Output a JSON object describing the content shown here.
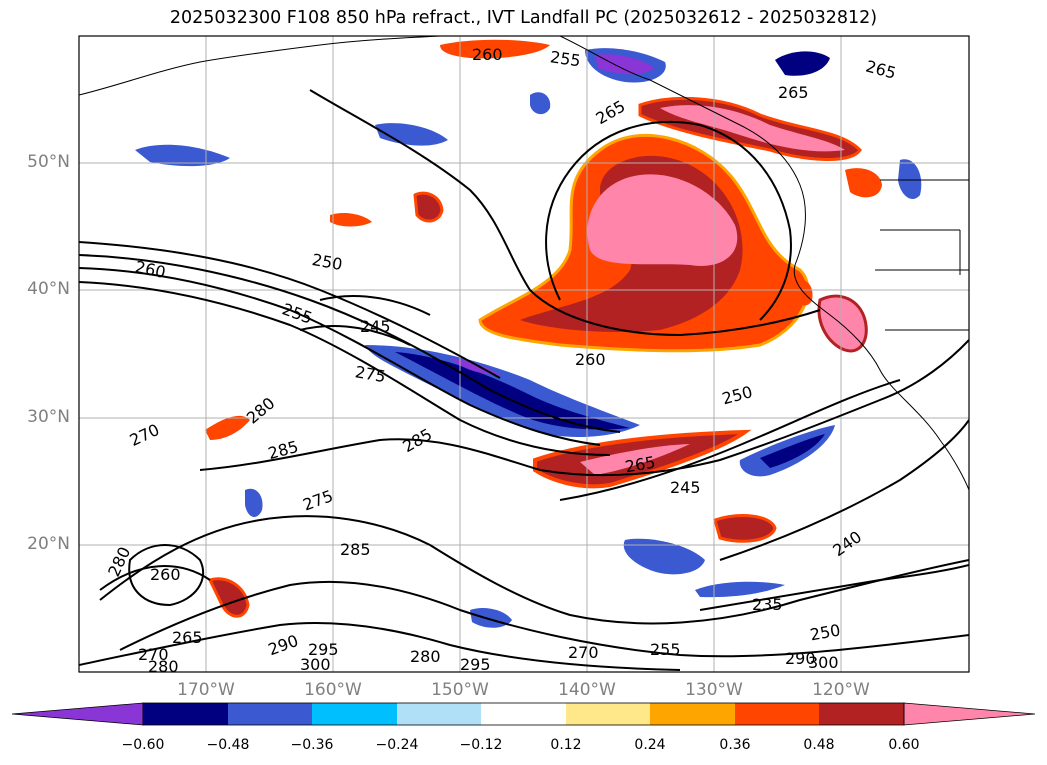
{
  "title": "2025032300 F108 850 hPa refract., IVT Landfall PC (2025032612 - 2025032812)",
  "lat_labels": [
    "50°N",
    "40°N",
    "30°N",
    "20°N"
  ],
  "lon_labels": [
    "170°W",
    "160°W",
    "150°W",
    "140°W",
    "130°W",
    "120°W"
  ],
  "contour_labels": [
    "260",
    "255",
    "265",
    "265",
    "265",
    "260",
    "250",
    "255",
    "245",
    "275",
    "260",
    "250",
    "270",
    "280",
    "285",
    "285",
    "275",
    "265",
    "245",
    "280",
    "285",
    "260",
    "240",
    "265",
    "290",
    "295",
    "300",
    "280",
    "295",
    "270",
    "255",
    "235",
    "250",
    "290",
    "300",
    "270",
    "280"
  ],
  "colorbar": {
    "colors": [
      "#8a35d6",
      "#000080",
      "#3b59d1",
      "#00bfff",
      "#b0e0f8",
      "#ffffff",
      "#ffe88a",
      "#ffa500",
      "#ff4500",
      "#b22222",
      "#ff85aa"
    ],
    "tick_labels": [
      "−0.60",
      "−0.48",
      "−0.36",
      "−0.24",
      "−0.12",
      "0.12",
      "0.24",
      "0.36",
      "0.48",
      "0.60"
    ]
  }
}
